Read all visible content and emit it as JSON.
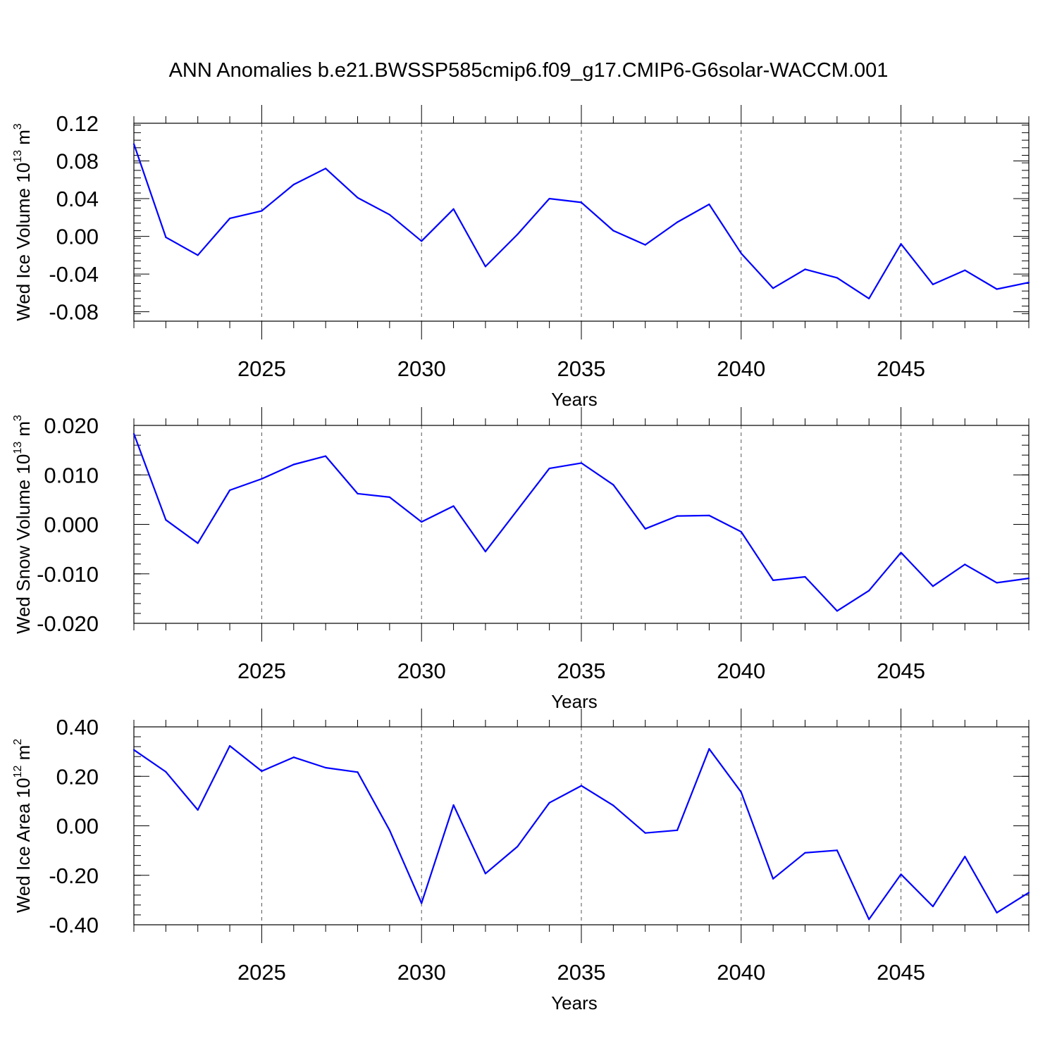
{
  "figure": {
    "title": "ANN Anomalies b.e21.BWSSP585cmip6.f09_g17.CMIP6-G6solar-WACCM.001"
  },
  "chart_data": [
    {
      "type": "line",
      "ylabel_main": "Wed Ice Volume 10",
      "ylabel_exp": "13",
      "ylabel_unit": " m",
      "ylabel_unit_exp": "3",
      "xlabel": "Years",
      "xlim": [
        2021,
        2049
      ],
      "ylim": [
        -0.09,
        0.12
      ],
      "x_ticks": [
        2025,
        2030,
        2035,
        2040,
        2045
      ],
      "y_ticks": [
        -0.08,
        -0.04,
        0.0,
        0.04,
        0.08,
        0.12
      ],
      "y_tick_labels": [
        "-0.08",
        "-0.04",
        "0.00",
        "0.04",
        "0.08",
        "0.12"
      ],
      "y_minor_step": 0.008,
      "line_color": "#0000ff",
      "grid": "dashed vertical at major x ticks",
      "x": [
        2021,
        2022,
        2023,
        2024,
        2025,
        2026,
        2027,
        2028,
        2029,
        2030,
        2031,
        2032,
        2033,
        2034,
        2035,
        2036,
        2037,
        2038,
        2039,
        2040,
        2041,
        2042,
        2043,
        2044,
        2045,
        2046,
        2047,
        2048,
        2049
      ],
      "values": [
        0.098,
        -0.001,
        -0.02,
        0.019,
        0.027,
        0.055,
        0.072,
        0.041,
        0.023,
        -0.005,
        0.029,
        -0.032,
        0.002,
        0.04,
        0.036,
        0.006,
        -0.009,
        0.015,
        0.034,
        -0.018,
        -0.055,
        -0.035,
        -0.044,
        -0.066,
        -0.008,
        -0.051,
        -0.036,
        -0.056,
        -0.049
      ]
    },
    {
      "type": "line",
      "ylabel_main": "Wed Snow Volume 10",
      "ylabel_exp": "13",
      "ylabel_unit": " m",
      "ylabel_unit_exp": "3",
      "xlabel": "Years",
      "xlim": [
        2021,
        2049
      ],
      "ylim": [
        -0.02,
        0.02
      ],
      "x_ticks": [
        2025,
        2030,
        2035,
        2040,
        2045
      ],
      "y_ticks": [
        -0.02,
        -0.01,
        0.0,
        0.01,
        0.02
      ],
      "y_tick_labels": [
        "-0.020",
        "-0.010",
        "0.000",
        "0.010",
        "0.020"
      ],
      "y_minor_step": 0.002,
      "line_color": "#0000ff",
      "grid": "dashed vertical at major x ticks",
      "x": [
        2021,
        2022,
        2023,
        2024,
        2025,
        2026,
        2027,
        2028,
        2029,
        2030,
        2031,
        2032,
        2033,
        2034,
        2035,
        2036,
        2037,
        2038,
        2039,
        2040,
        2041,
        2042,
        2043,
        2044,
        2045,
        2046,
        2047,
        2048,
        2049
      ],
      "values": [
        0.0183,
        0.0009,
        -0.0038,
        0.0069,
        0.0092,
        0.0121,
        0.0138,
        0.0062,
        0.0055,
        0.0005,
        0.0037,
        -0.0055,
        0.0029,
        0.0113,
        0.0124,
        0.008,
        -0.0009,
        0.0017,
        0.0018,
        -0.0015,
        -0.0113,
        -0.0106,
        -0.0175,
        -0.0134,
        -0.0057,
        -0.0125,
        -0.0081,
        -0.0118,
        -0.0109
      ]
    },
    {
      "type": "line",
      "ylabel_main": "Wed Ice Area 10",
      "ylabel_exp": "12",
      "ylabel_unit": " m",
      "ylabel_unit_exp": "2",
      "xlabel": "Years",
      "xlim": [
        2021,
        2049
      ],
      "ylim": [
        -0.4,
        0.4
      ],
      "x_ticks": [
        2025,
        2030,
        2035,
        2040,
        2045
      ],
      "y_ticks": [
        -0.4,
        -0.2,
        0.0,
        0.2,
        0.4
      ],
      "y_tick_labels": [
        "-0.40",
        "-0.20",
        "0.00",
        "0.20",
        "0.40"
      ],
      "y_minor_step": 0.04,
      "line_color": "#0000ff",
      "grid": "dashed vertical at major x ticks",
      "x": [
        2021,
        2022,
        2023,
        2024,
        2025,
        2026,
        2027,
        2028,
        2029,
        2030,
        2031,
        2032,
        2033,
        2034,
        2035,
        2036,
        2037,
        2038,
        2039,
        2040,
        2041,
        2042,
        2043,
        2044,
        2045,
        2046,
        2047,
        2048,
        2049
      ],
      "values": [
        0.307,
        0.218,
        0.064,
        0.323,
        0.221,
        0.277,
        0.235,
        0.217,
        -0.018,
        -0.313,
        0.084,
        -0.193,
        -0.084,
        0.093,
        0.162,
        0.082,
        -0.029,
        -0.018,
        0.311,
        0.136,
        -0.214,
        -0.109,
        -0.099,
        -0.378,
        -0.196,
        -0.326,
        -0.124,
        -0.351,
        -0.27
      ]
    }
  ]
}
